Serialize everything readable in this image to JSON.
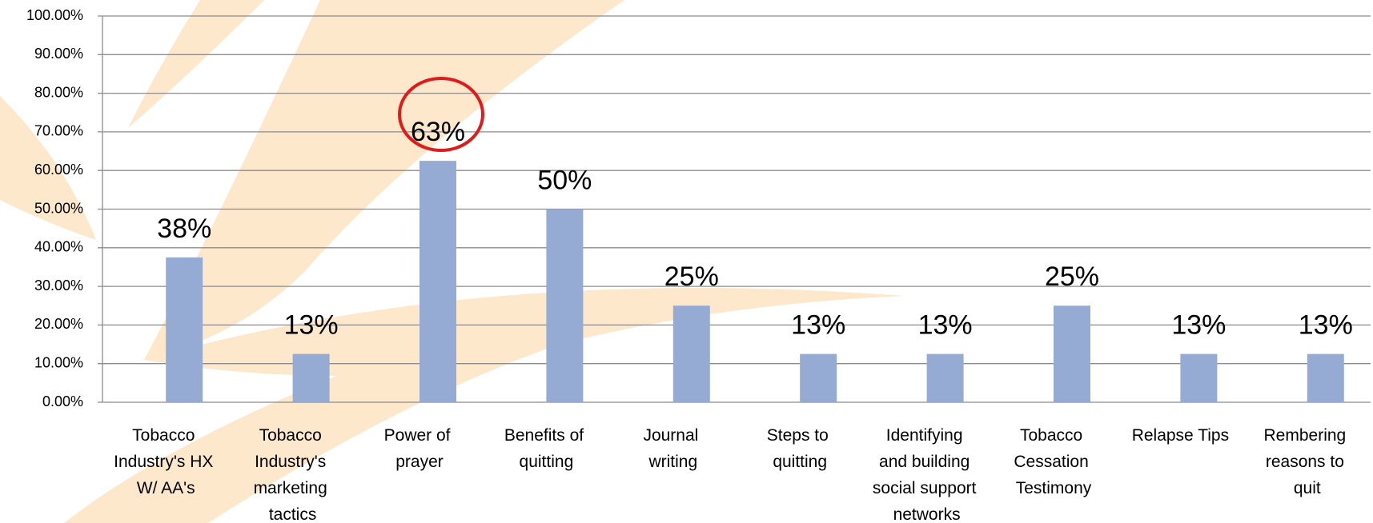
{
  "chart_data": {
    "type": "bar",
    "categories": [
      "Tobacco Industry's HX W/ AA's",
      "Tobacco Industry's marketing tactics",
      "Power of prayer",
      "Benefits of quitting",
      "Journal writing",
      "Steps to quitting",
      "Identifying and building social support networks",
      "Tobacco Cessation Testimony",
      "Relapse Tips",
      "Rembering reasons to quit"
    ],
    "values": [
      37.5,
      12.5,
      62.5,
      50,
      25,
      12.5,
      12.5,
      25,
      12.5,
      12.5
    ],
    "value_labels": [
      "38%",
      "13%",
      "63%",
      "50%",
      "25%",
      "13%",
      "13%",
      "25%",
      "13%",
      "13%"
    ],
    "color": "#95abd3",
    "ylim": [
      0,
      100
    ],
    "yticks": [
      {
        "value": 0,
        "label": "0.00%"
      },
      {
        "value": 10,
        "label": "10.00%"
      },
      {
        "value": 20,
        "label": "20.00%"
      },
      {
        "value": 30,
        "label": "30.00%"
      },
      {
        "value": 40,
        "label": "40.00%"
      },
      {
        "value": 50,
        "label": "50.00%"
      },
      {
        "value": 60,
        "label": "60.00%"
      },
      {
        "value": 70,
        "label": "70.00%"
      },
      {
        "value": 80,
        "label": "80.00%"
      },
      {
        "value": 90,
        "label": "90.00%"
      },
      {
        "value": 100,
        "label": "100.00%"
      }
    ],
    "grid": true
  }
}
